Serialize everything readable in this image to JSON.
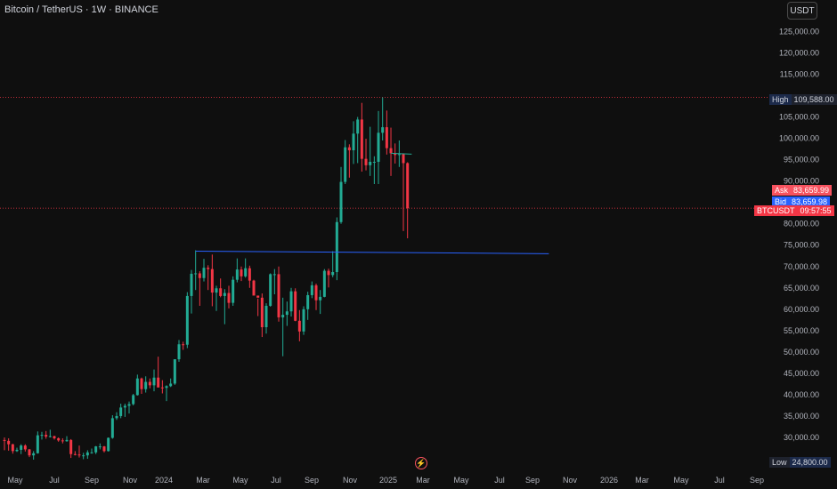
{
  "symbol": {
    "title": "Bitcoin / TetherUS · 1W · BINANCE"
  },
  "toolbar": {
    "currency": "USDT"
  },
  "colors": {
    "up": "#22ab94",
    "down": "#f23645",
    "blue_line": "#2962ff",
    "background": "#0f0f0f"
  },
  "price_axis": {
    "ticks": [
      "125,000.00",
      "120,000.00",
      "115,000.00",
      "105,000.00",
      "100,000.00",
      "95,000.00",
      "90,000.00",
      "80,000.00",
      "75,000.00",
      "70,000.00",
      "65,000.00",
      "60,000.00",
      "55,000.00",
      "50,000.00",
      "45,000.00",
      "40,000.00",
      "35,000.00",
      "30,000.00"
    ]
  },
  "tags": {
    "high_label": "High",
    "high_value": "109,588.00",
    "ask_label": "Ask",
    "ask_value": "83,659.99",
    "bid_label": "Bid",
    "bid_value": "83,659.98",
    "sym_label": "BTCUSDT",
    "sym_value": "09:57:55",
    "low_label": "Low",
    "low_value": "24,800.00"
  },
  "time_axis": {
    "labels": [
      "May",
      "Jul",
      "Sep",
      "Nov",
      "2024",
      "Mar",
      "May",
      "Jul",
      "Sep",
      "Nov",
      "2025",
      "Mar",
      "May",
      "Jul",
      "Sep",
      "Nov",
      "2026",
      "Mar",
      "May",
      "Jul",
      "Sep"
    ]
  },
  "chart_data": {
    "type": "candlestick",
    "horizontal_lines": [
      {
        "price": 109588,
        "style": "dotted"
      },
      {
        "price": 83660,
        "style": "dotted"
      }
    ],
    "trend_lines": [
      {
        "from": [
          "2024-03-11",
          73600
        ],
        "to": [
          "2025-10-27",
          73000
        ],
        "color": "#2962ff"
      },
      {
        "from": [
          "2025-02-03",
          96500
        ],
        "to": [
          "2025-03-10",
          96300
        ],
        "color": "#22ab94"
      }
    ],
    "candles": [
      [
        "2023-04-24",
        29400,
        30000,
        27000,
        29200
      ],
      [
        "2023-05-01",
        29200,
        29800,
        26900,
        28400
      ],
      [
        "2023-05-08",
        28400,
        28500,
        26200,
        26800
      ],
      [
        "2023-05-15",
        26800,
        27600,
        26600,
        27100
      ],
      [
        "2023-05-22",
        27100,
        28400,
        26100,
        28100
      ],
      [
        "2023-05-29",
        28100,
        28400,
        26700,
        27200
      ],
      [
        "2023-06-05",
        27200,
        27300,
        25400,
        25800
      ],
      [
        "2023-06-12",
        25800,
        26800,
        24800,
        26300
      ],
      [
        "2023-06-19",
        26300,
        31400,
        26200,
        30500
      ],
      [
        "2023-06-26",
        30500,
        31300,
        29500,
        30600
      ],
      [
        "2023-07-03",
        30600,
        31500,
        29700,
        30200
      ],
      [
        "2023-07-10",
        30200,
        31800,
        30000,
        30300
      ],
      [
        "2023-07-17",
        30300,
        30400,
        29500,
        29800
      ],
      [
        "2023-07-24",
        29800,
        30000,
        29000,
        29300
      ],
      [
        "2023-07-31",
        29300,
        29800,
        28600,
        29100
      ],
      [
        "2023-08-07",
        29100,
        30300,
        29000,
        29400
      ],
      [
        "2023-08-14",
        29400,
        29600,
        25200,
        26100
      ],
      [
        "2023-08-21",
        26100,
        26800,
        25800,
        26000
      ],
      [
        "2023-08-28",
        26000,
        28100,
        25300,
        25800
      ],
      [
        "2023-09-04",
        25800,
        26400,
        24900,
        25800
      ],
      [
        "2023-09-11",
        25800,
        27000,
        25000,
        26500
      ],
      [
        "2023-09-18",
        26500,
        27400,
        26200,
        26500
      ],
      [
        "2023-09-25",
        26500,
        28000,
        26100,
        27900
      ],
      [
        "2023-10-02",
        27900,
        28600,
        27200,
        27900
      ],
      [
        "2023-10-09",
        27900,
        28000,
        26500,
        26800
      ],
      [
        "2023-10-16",
        26800,
        30000,
        26700,
        29900
      ],
      [
        "2023-10-23",
        29900,
        35200,
        29700,
        34500
      ],
      [
        "2023-10-30",
        34500,
        35900,
        34100,
        35000
      ],
      [
        "2023-11-06",
        35000,
        37900,
        34500,
        37000
      ],
      [
        "2023-11-13",
        37000,
        37900,
        34800,
        37400
      ],
      [
        "2023-11-20",
        37400,
        38400,
        35600,
        37800
      ],
      [
        "2023-11-27",
        37800,
        40200,
        37500,
        39900
      ],
      [
        "2023-12-04",
        39900,
        44700,
        39800,
        43800
      ],
      [
        "2023-12-11",
        43800,
        44000,
        40200,
        41300
      ],
      [
        "2023-12-18",
        41300,
        44300,
        40500,
        43000
      ],
      [
        "2023-12-25",
        43000,
        43800,
        41500,
        42200
      ],
      [
        "2024-01-01",
        42200,
        45900,
        40800,
        44000
      ],
      [
        "2024-01-08",
        44000,
        48900,
        41700,
        41700
      ],
      [
        "2024-01-15",
        41700,
        43400,
        40300,
        41600
      ],
      [
        "2024-01-22",
        41600,
        42200,
        38500,
        42000
      ],
      [
        "2024-01-29",
        42000,
        43800,
        41800,
        42600
      ],
      [
        "2024-02-05",
        42600,
        48200,
        42300,
        48300
      ],
      [
        "2024-02-12",
        48300,
        52800,
        47700,
        51800
      ],
      [
        "2024-02-19",
        51800,
        52400,
        50500,
        51700
      ],
      [
        "2024-02-26",
        51700,
        64000,
        50900,
        63100
      ],
      [
        "2024-03-04",
        63100,
        69200,
        59000,
        68300
      ],
      [
        "2024-03-11",
        68300,
        73800,
        64500,
        68400
      ],
      [
        "2024-03-18",
        68400,
        68900,
        60800,
        67300
      ],
      [
        "2024-03-25",
        67300,
        71800,
        66500,
        69700
      ],
      [
        "2024-04-01",
        69700,
        70300,
        64500,
        69400
      ],
      [
        "2024-04-08",
        69400,
        72800,
        60700,
        63900
      ],
      [
        "2024-04-15",
        63900,
        65500,
        59600,
        64900
      ],
      [
        "2024-04-22",
        64900,
        67200,
        62800,
        63100
      ],
      [
        "2024-04-29",
        63100,
        64700,
        56500,
        63800
      ],
      [
        "2024-05-06",
        63800,
        65500,
        60200,
        61500
      ],
      [
        "2024-05-13",
        61500,
        67700,
        60800,
        66900
      ],
      [
        "2024-05-20",
        66900,
        71900,
        66300,
        69300
      ],
      [
        "2024-05-27",
        69300,
        70000,
        66600,
        67700
      ],
      [
        "2024-06-03",
        67700,
        71900,
        67400,
        69600
      ],
      [
        "2024-06-10",
        69600,
        70200,
        65000,
        66700
      ],
      [
        "2024-06-17",
        66700,
        66900,
        63400,
        63200
      ],
      [
        "2024-06-24",
        63200,
        62500,
        58400,
        62700
      ],
      [
        "2024-07-01",
        62700,
        63700,
        53500,
        55800
      ],
      [
        "2024-07-08",
        55800,
        61400,
        54300,
        60800
      ],
      [
        "2024-07-15",
        60800,
        68400,
        60600,
        68200
      ],
      [
        "2024-07-22",
        68200,
        69400,
        63500,
        68200
      ],
      [
        "2024-07-29",
        68200,
        70000,
        57100,
        58100
      ],
      [
        "2024-08-05",
        58100,
        62700,
        49000,
        58700
      ],
      [
        "2024-08-12",
        58700,
        61800,
        56100,
        59500
      ],
      [
        "2024-08-19",
        59500,
        65000,
        58300,
        64200
      ],
      [
        "2024-08-26",
        64200,
        64900,
        57200,
        57300
      ],
      [
        "2024-09-02",
        57300,
        59800,
        52500,
        54800
      ],
      [
        "2024-09-09",
        54800,
        60700,
        54000,
        60000
      ],
      [
        "2024-09-16",
        60000,
        64100,
        57500,
        63300
      ],
      [
        "2024-09-23",
        63300,
        66500,
        62600,
        65600
      ],
      [
        "2024-09-30",
        65600,
        66000,
        59800,
        62100
      ],
      [
        "2024-10-07",
        62100,
        64500,
        58900,
        62900
      ],
      [
        "2024-10-14",
        62900,
        69400,
        62800,
        69000
      ],
      [
        "2024-10-21",
        69000,
        69500,
        65100,
        68000
      ],
      [
        "2024-10-28",
        68000,
        73600,
        67500,
        68700
      ],
      [
        "2024-11-04",
        68700,
        81500,
        66800,
        80400
      ],
      [
        "2024-11-11",
        80400,
        93300,
        80000,
        89800
      ],
      [
        "2024-11-18",
        89800,
        99600,
        89300,
        97900
      ],
      [
        "2024-11-25",
        97900,
        98600,
        90800,
        97200
      ],
      [
        "2024-12-02",
        97200,
        104000,
        94000,
        101100
      ],
      [
        "2024-12-09",
        101100,
        105000,
        94200,
        104400
      ],
      [
        "2024-12-16",
        104400,
        108300,
        92200,
        95200
      ],
      [
        "2024-12-23",
        95200,
        99900,
        92500,
        93700
      ],
      [
        "2024-12-30",
        93700,
        102700,
        91200,
        94500
      ],
      [
        "2025-01-06",
        94500,
        95800,
        89300,
        94500
      ],
      [
        "2025-01-13",
        94500,
        106400,
        89300,
        101300
      ],
      [
        "2025-01-20",
        101300,
        109588,
        99500,
        102600
      ],
      [
        "2025-01-27",
        102600,
        106500,
        96200,
        97700
      ],
      [
        "2025-02-03",
        97700,
        102500,
        91200,
        96500
      ],
      [
        "2025-02-10",
        96500,
        98800,
        94100,
        96100
      ],
      [
        "2025-02-17",
        96100,
        99500,
        93300,
        96300
      ],
      [
        "2025-02-24",
        96300,
        96500,
        78300,
        94200
      ],
      [
        "2025-03-03",
        94200,
        94400,
        76600,
        83660
      ]
    ]
  }
}
